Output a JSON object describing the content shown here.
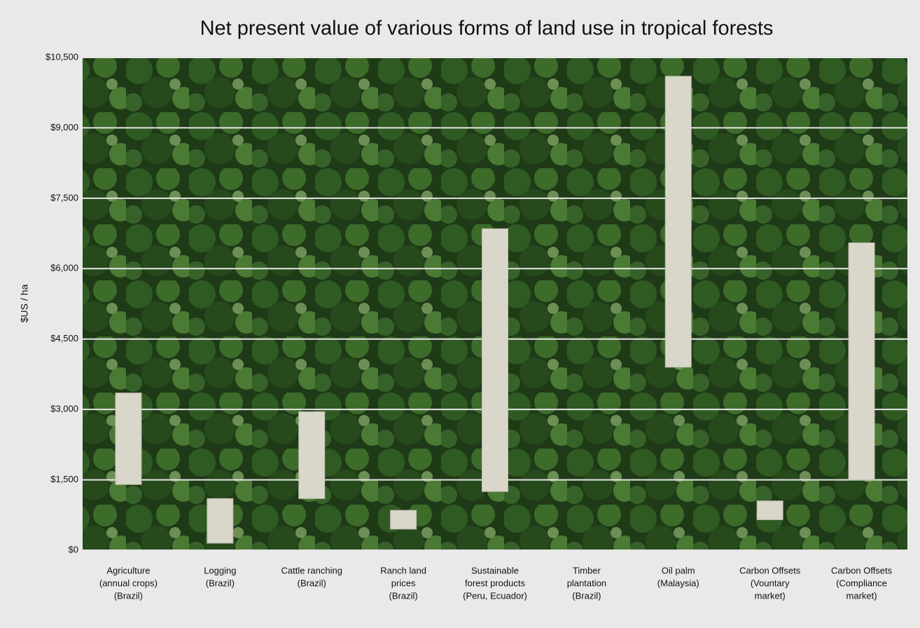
{
  "chart_data": {
    "type": "floating-bar",
    "title": "Net present value of various forms of land use in tropical forests",
    "y_label": "$US / ha",
    "categories": [
      [
        "Agriculture",
        "(annual crops)",
        "(Brazil)"
      ],
      [
        "Logging",
        "(Brazil)"
      ],
      [
        "Cattle ranching",
        "(Brazil)"
      ],
      [
        "Ranch land",
        "prices",
        "(Brazil)"
      ],
      [
        "Sustainable",
        "forest products",
        "(Peru, Ecuador)"
      ],
      [
        "Timber",
        "plantation",
        "(Brazil)"
      ],
      [
        "Oil palm",
        "(Malaysia)"
      ],
      [
        "Carbon Offsets",
        "(Vountary",
        "market)"
      ],
      [
        "Carbon Offsets",
        "(Compliance",
        "market)"
      ]
    ],
    "low": [
      1400,
      150,
      1100,
      450,
      1250,
      null,
      3900,
      650,
      1500
    ],
    "high": [
      3350,
      1100,
      2950,
      850,
      6850,
      null,
      10100,
      1050,
      6550
    ],
    "color": "#d9d7ca",
    "ylim": [
      0,
      10500
    ],
    "yticks": [
      {
        "value": 0,
        "label": "$0"
      },
      {
        "value": 1500,
        "label": "$1,500"
      },
      {
        "value": 3000,
        "label": "$3,000"
      },
      {
        "value": 4500,
        "label": "$4,500"
      },
      {
        "value": 6000,
        "label": "$6,000"
      },
      {
        "value": 7500,
        "label": "$7,500"
      },
      {
        "value": 9000,
        "label": "$9,000"
      },
      {
        "value": 10500,
        "label": "$10,500"
      }
    ],
    "grid": true
  }
}
